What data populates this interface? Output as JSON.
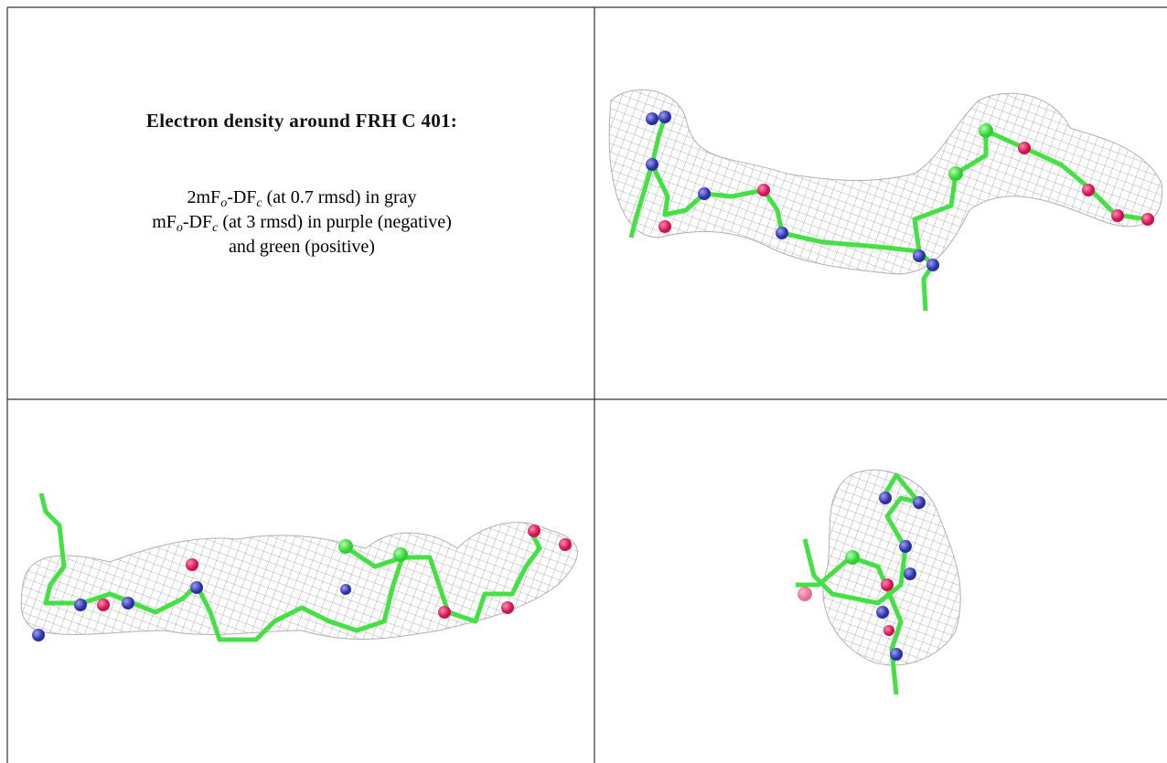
{
  "caption": {
    "title": "Electron density around FRH C 401:",
    "line1": [
      "2mF",
      "o",
      "-DF",
      "c",
      " (at 0.7 rmsd) in gray"
    ],
    "line2": [
      "mF",
      "o",
      "-DF",
      "c",
      " (at 3 rmsd) in purple (negative)"
    ],
    "line3": "and green (positive)"
  }
}
